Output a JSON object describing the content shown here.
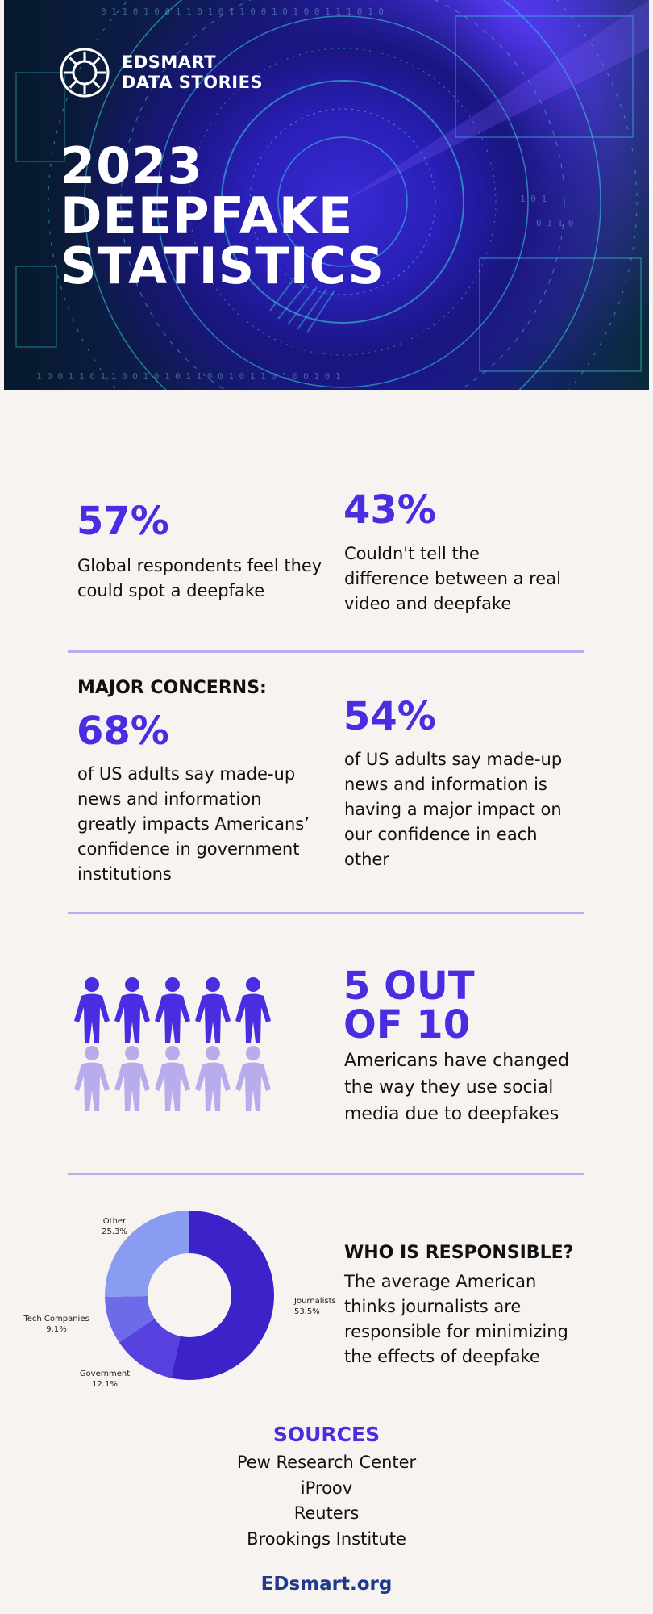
{
  "hero": {
    "brand_line1": "EDSMART",
    "brand_line2": "DATA STORIES",
    "title_line1": "2023",
    "title_line2": "DEEPFAKE",
    "title_line3": "STATISTICS",
    "logo_icon": "sun-wheel-icon",
    "colors": {
      "deep_blue": "#1a1580",
      "violet": "#3a2bd6",
      "cyan_lines": "#38d9e0"
    }
  },
  "stats_row1": [
    {
      "value": "57%",
      "text": "Global respondents feel they could spot a deepfake",
      "lines": [
        "Global respondents feel they",
        "could spot a deepfake"
      ]
    },
    {
      "value": "43%",
      "text": "Couldn't tell the difference between a real video and deepfake",
      "lines": [
        "Couldn't tell the",
        "difference between a real",
        "video and deepfake"
      ]
    }
  ],
  "concerns": {
    "heading": "MAJOR CONCERNS:",
    "items": [
      {
        "value": "68%",
        "lines": [
          "of US adults say made-up",
          "news and information",
          "greatly impacts Americans’",
          "confidence in government",
          "institutions"
        ]
      },
      {
        "value": "54%",
        "lines": [
          "of US adults say made-up",
          "news and information is",
          "having a major impact on",
          "our confidence in each",
          "other"
        ]
      }
    ]
  },
  "social": {
    "value_line1": "5 OUT",
    "value_line2": "OF 10",
    "lines": [
      "Americans have changed",
      "the way they use social",
      "media due to deepfakes"
    ],
    "people_total": 10,
    "people_highlighted": 5,
    "colors": {
      "highlighted": "#4a2de0",
      "muted": "#b9acec"
    }
  },
  "responsible": {
    "heading": "WHO IS RESPONSIBLE?",
    "lines": [
      "The average American",
      "thinks journalists are",
      "responsible for minimizing",
      "the effects of deepfake"
    ]
  },
  "chart_data": {
    "type": "pie",
    "donut": true,
    "labels": [
      "Journalists",
      "Government",
      "Tech Companies",
      "Other"
    ],
    "values": [
      53.5,
      12.1,
      9.1,
      25.3
    ],
    "value_labels": [
      "53.5%",
      "12.1%",
      "9.1%",
      "25.3%"
    ],
    "colors": [
      "#3b23c9",
      "#5641de",
      "#6d6be8",
      "#8a9cf2"
    ],
    "legend": "none"
  },
  "sources": {
    "title": "SOURCES",
    "items": [
      "Pew Research Center",
      "iProov",
      "Reuters",
      "Brookings Institute"
    ]
  },
  "footer": {
    "site": "EDsmart.org"
  },
  "colors": {
    "accent": "#4a2de0",
    "divider": "#b7aef0",
    "background": "#f7f3f1",
    "footer": "#1f3a8a"
  }
}
